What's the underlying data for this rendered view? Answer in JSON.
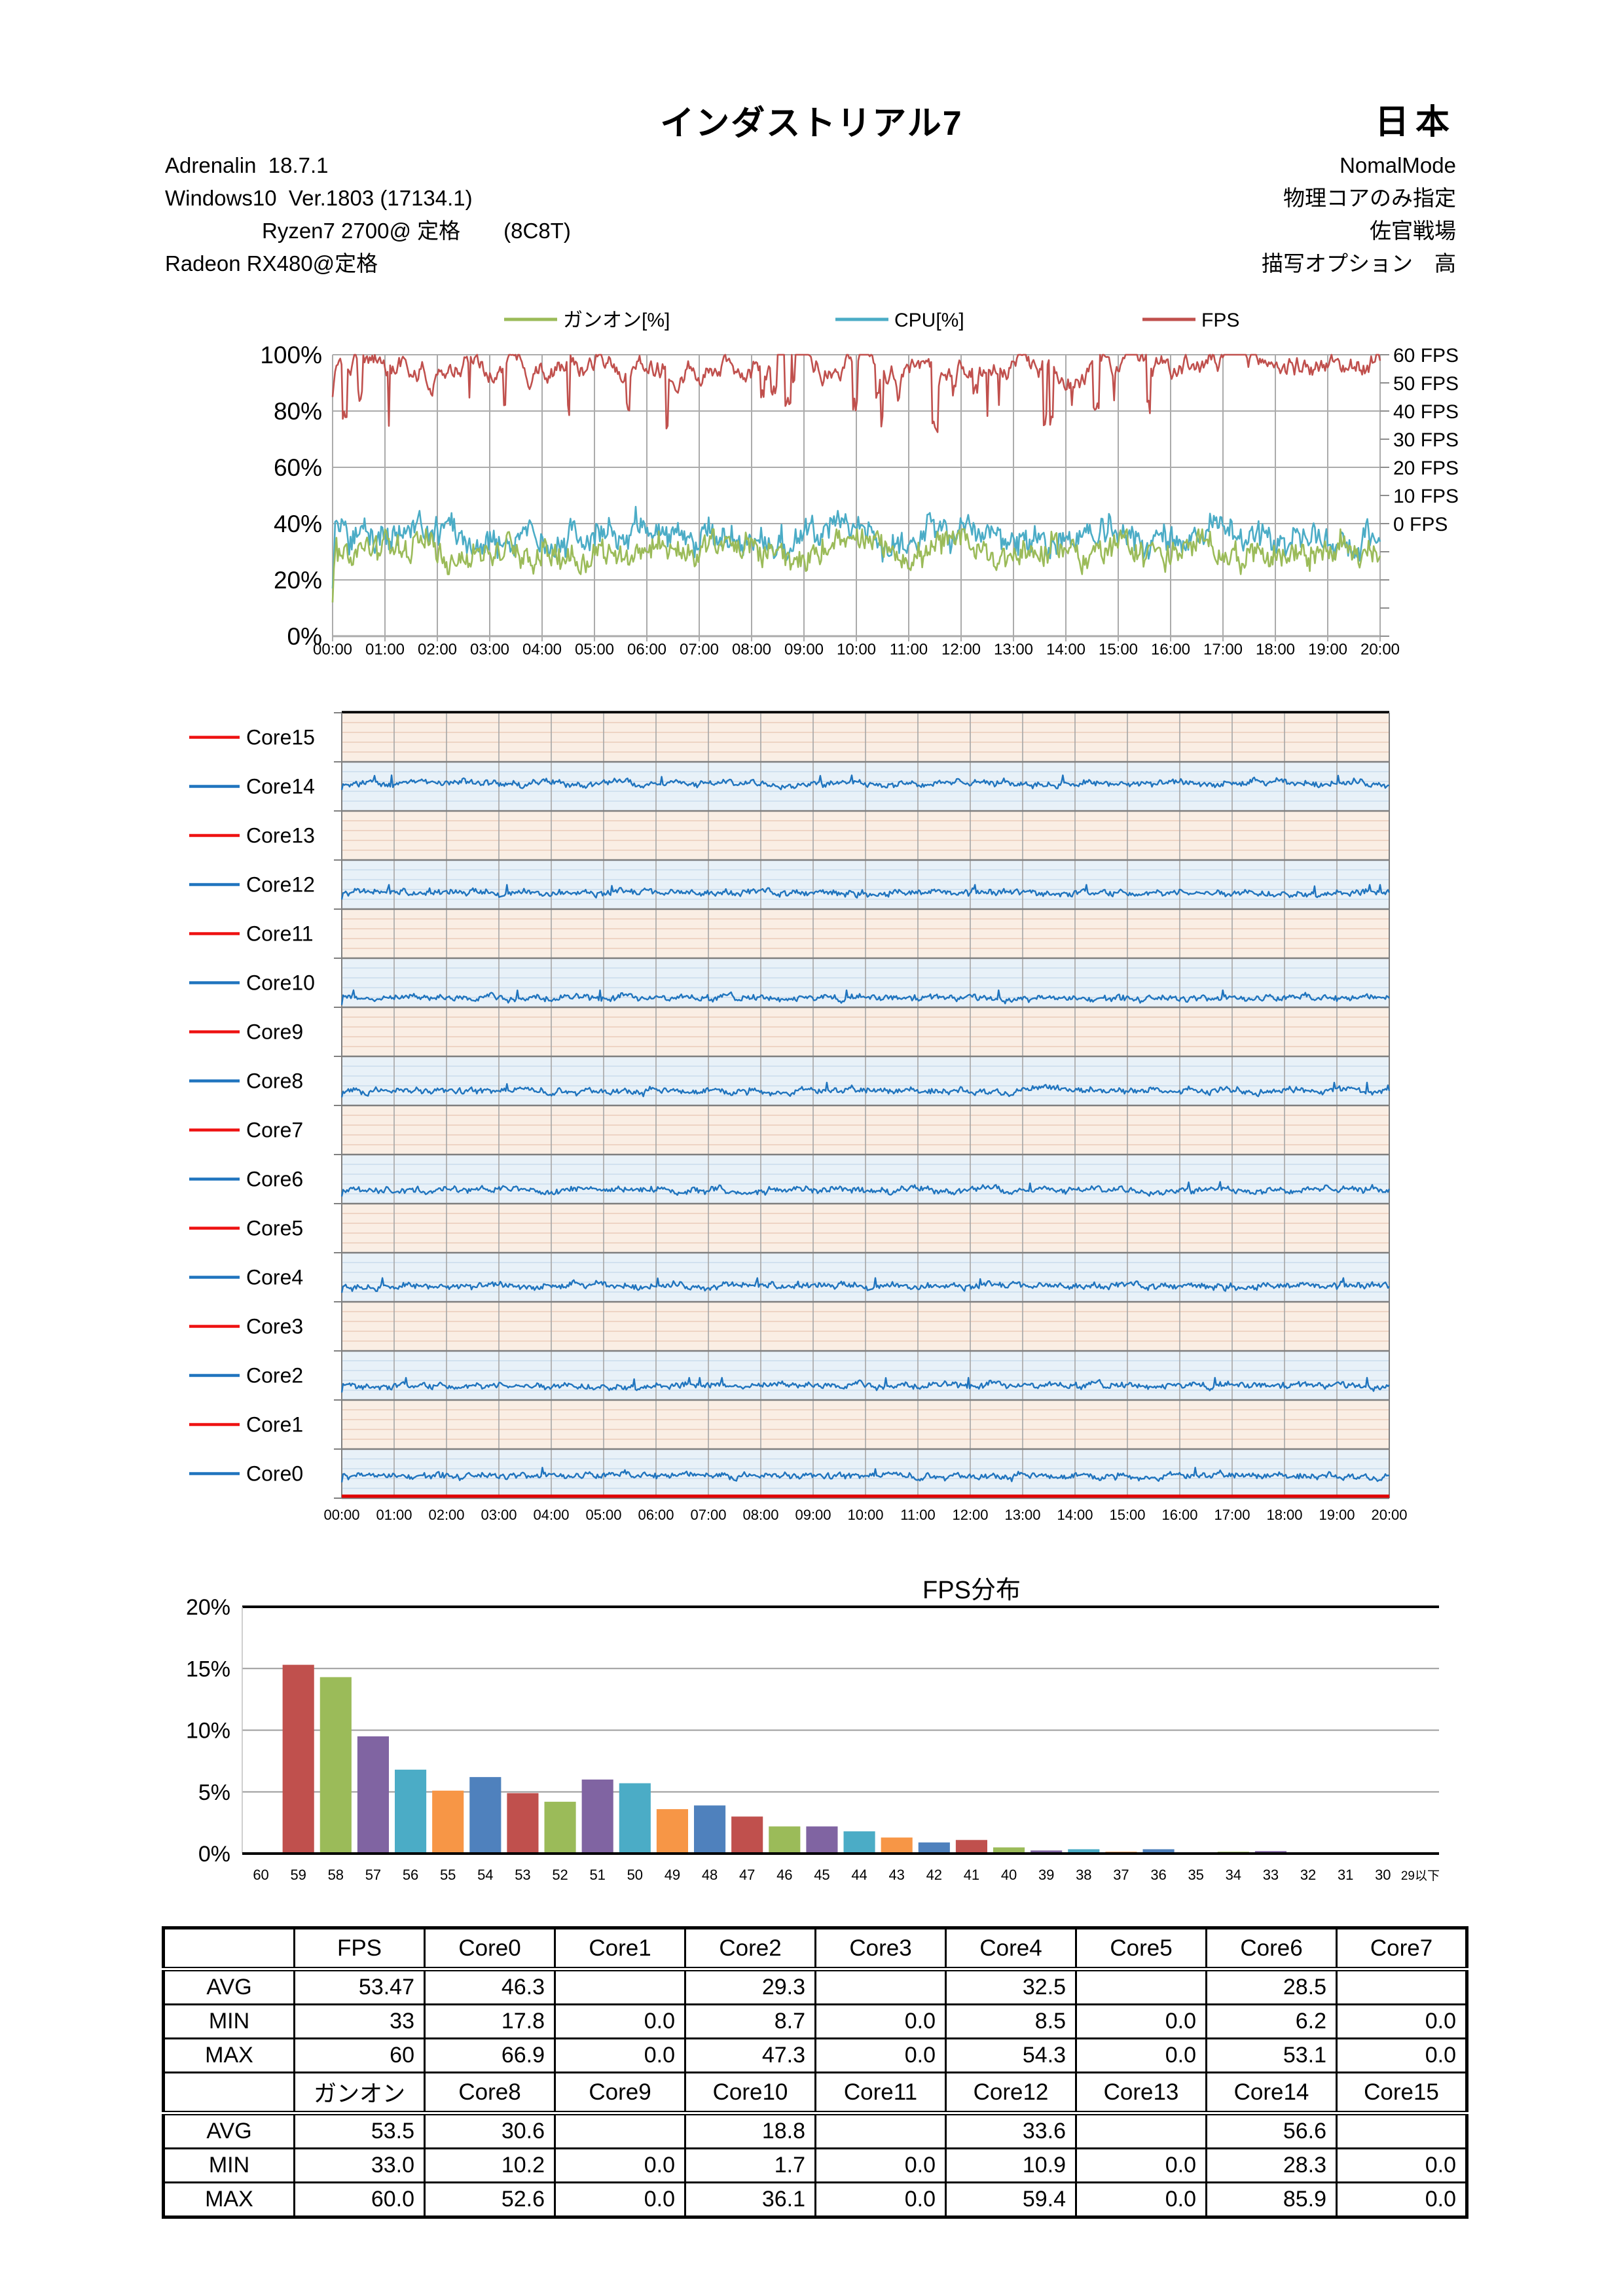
{
  "header": {
    "title": "インダストリアル7",
    "region": "日本",
    "left_lines": [
      "Adrenalin  18.7.1",
      "Windows10  Ver.1803 (17134.1)",
      "Ryzen7 2700@ 定格　　(8C8T)",
      "Radeon RX480@定格"
    ],
    "right_lines": [
      "NomalMode",
      "物理コアのみ指定",
      "佐官戦場",
      "描写オプション　高"
    ]
  },
  "time_labels": [
    "00:00",
    "01:00",
    "02:00",
    "03:00",
    "04:00",
    "05:00",
    "06:00",
    "07:00",
    "08:00",
    "09:00",
    "10:00",
    "11:00",
    "12:00",
    "13:00",
    "14:00",
    "15:00",
    "16:00",
    "17:00",
    "18:00",
    "19:00",
    "20:00"
  ],
  "chart_data": [
    {
      "id": "usage_fps_chart",
      "type": "line",
      "legend": [
        {
          "name": "ガンオン[%]",
          "color": "#9BBB59"
        },
        {
          "name": "CPU[%]",
          "color": "#4BACC6"
        },
        {
          "name": "FPS",
          "color": "#C0504D"
        }
      ],
      "y_left_labels": [
        "100%",
        "80%",
        "60%",
        "40%",
        "20%",
        "0%"
      ],
      "y_left_range": [
        0,
        100
      ],
      "y_right_labels": [
        "60 FPS",
        "50 FPS",
        "40 FPS",
        "30 FPS",
        "20 FPS",
        "10 FPS",
        "0 FPS"
      ],
      "y_right_range": [
        0,
        60
      ],
      "x_axis": "time 00:00-20:00, gridline every minute",
      "series_stats": [
        {
          "name": "ガンオン[%]",
          "approx_avg_pct": 31,
          "approx_range_pct": [
            12,
            38
          ]
        },
        {
          "name": "CPU[%]",
          "approx_avg_pct": 35,
          "approx_range_pct": [
            17,
            48
          ]
        },
        {
          "name": "FPS",
          "avg": 53.47,
          "min": 33,
          "max": 60,
          "axis": "right"
        }
      ]
    },
    {
      "id": "cores_chart",
      "type": "line-lanes",
      "lanes_top_to_bottom": [
        {
          "name": "Core15",
          "color": "#EE1111",
          "avg": 0
        },
        {
          "name": "Core14",
          "color": "#1F74BE",
          "avg": 56.6
        },
        {
          "name": "Core13",
          "color": "#EE1111",
          "avg": 0
        },
        {
          "name": "Core12",
          "color": "#1F74BE",
          "avg": 33.6
        },
        {
          "name": "Core11",
          "color": "#EE1111",
          "avg": 0
        },
        {
          "name": "Core10",
          "color": "#1F74BE",
          "avg": 18.8
        },
        {
          "name": "Core9",
          "color": "#EE1111",
          "avg": 0
        },
        {
          "name": "Core8",
          "color": "#1F74BE",
          "avg": 30.6
        },
        {
          "name": "Core7",
          "color": "#EE1111",
          "avg": 0
        },
        {
          "name": "Core6",
          "color": "#1F74BE",
          "avg": 28.5
        },
        {
          "name": "Core5",
          "color": "#EE1111",
          "avg": 0
        },
        {
          "name": "Core4",
          "color": "#1F74BE",
          "avg": 32.5
        },
        {
          "name": "Core3",
          "color": "#EE1111",
          "avg": 0
        },
        {
          "name": "Core2",
          "color": "#1F74BE",
          "avg": 29.3
        },
        {
          "name": "Core1",
          "color": "#EE1111",
          "avg": 0
        },
        {
          "name": "Core0",
          "color": "#1F74BE",
          "avg": 46.3
        }
      ],
      "lane_scale_pct": [
        0,
        100
      ],
      "x_axis": "time 00:00-20:00, gridline every minute"
    },
    {
      "id": "fps_histogram",
      "type": "bar",
      "title": "FPS分布",
      "categories": [
        "60",
        "59",
        "58",
        "57",
        "56",
        "55",
        "54",
        "53",
        "52",
        "51",
        "50",
        "49",
        "48",
        "47",
        "46",
        "45",
        "44",
        "43",
        "42",
        "41",
        "40",
        "39",
        "38",
        "37",
        "36",
        "35",
        "34",
        "33",
        "32",
        "31",
        "30",
        "29以下"
      ],
      "values": [
        0.07,
        15.3,
        14.3,
        9.5,
        6.8,
        5.1,
        6.2,
        4.9,
        4.2,
        6.0,
        5.7,
        3.6,
        3.9,
        3.0,
        2.2,
        2.2,
        1.8,
        1.3,
        0.9,
        1.1,
        0.5,
        0.25,
        0.35,
        0.15,
        0.35,
        0.05,
        0.15,
        0.2,
        0.05,
        0.02,
        0.02,
        0.05
      ],
      "palette": [
        "#4F81BD",
        "#C0504D",
        "#9BBB59",
        "#8064A2",
        "#4BACC6",
        "#F79646"
      ],
      "y_labels": [
        "20%",
        "15%",
        "10%",
        "5%",
        "0%"
      ],
      "ylim": [
        0,
        20
      ],
      "grid": "horizontal every 5%"
    }
  ],
  "stats_table": {
    "header_row1": [
      "",
      "FPS",
      "Core0",
      "Core1",
      "Core2",
      "Core3",
      "Core4",
      "Core5",
      "Core6",
      "Core7"
    ],
    "rows1": [
      [
        "AVG",
        "53.47",
        "46.3",
        "",
        "29.3",
        "",
        "32.5",
        "",
        "28.5",
        ""
      ],
      [
        "MIN",
        "33",
        "17.8",
        "0.0",
        "8.7",
        "0.0",
        "8.5",
        "0.0",
        "6.2",
        "0.0"
      ],
      [
        "MAX",
        "60",
        "66.9",
        "0.0",
        "47.3",
        "0.0",
        "54.3",
        "0.0",
        "53.1",
        "0.0"
      ]
    ],
    "header_row2": [
      "",
      "ガンオン",
      "Core8",
      "Core9",
      "Core10",
      "Core11",
      "Core12",
      "Core13",
      "Core14",
      "Core15"
    ],
    "rows2": [
      [
        "AVG",
        "53.5",
        "30.6",
        "",
        "18.8",
        "",
        "33.6",
        "",
        "56.6",
        ""
      ],
      [
        "MIN",
        "33.0",
        "10.2",
        "0.0",
        "1.7",
        "0.0",
        "10.9",
        "0.0",
        "28.3",
        "0.0"
      ],
      [
        "MAX",
        "60.0",
        "52.6",
        "0.0",
        "36.1",
        "0.0",
        "59.4",
        "0.0",
        "85.9",
        "0.0"
      ]
    ]
  }
}
